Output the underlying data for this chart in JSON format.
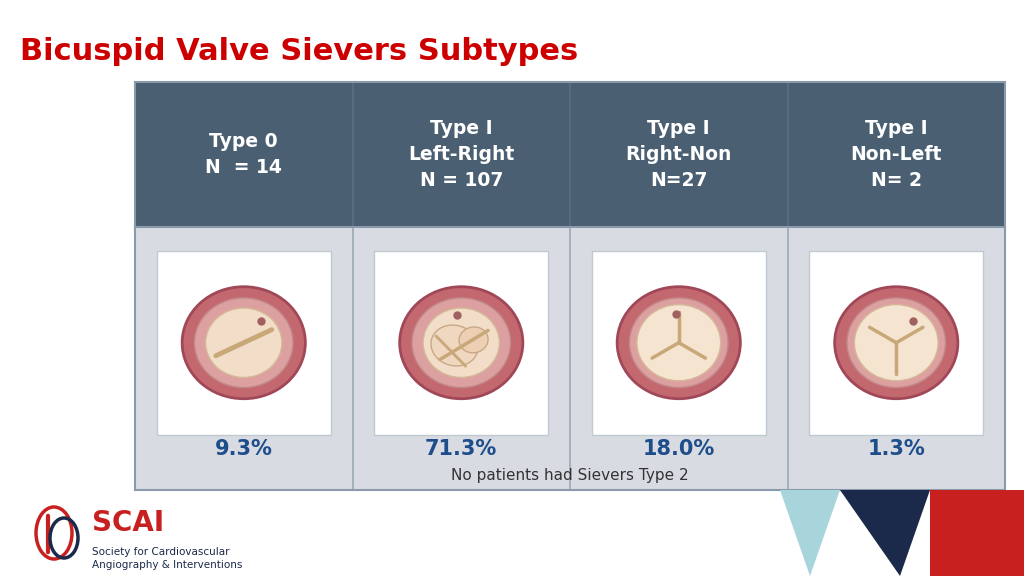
{
  "title": "Bicuspid Valve Sievers Subtypes",
  "title_color": "#CC0000",
  "title_fontsize": 22,
  "header_bg": "#4A5F72",
  "header_text_color": "#FFFFFF",
  "body_bg": "#D8DCE2",
  "percentage_color": "#1E4D8C",
  "footer_text_color": "#333333",
  "columns": [
    {
      "header": "Type 0\nN  = 14",
      "percentage": "9.3%"
    },
    {
      "header": "Type I\nLeft-Right\nN = 107",
      "percentage": "71.3%"
    },
    {
      "header": "Type I\nRight-Non\nN=27",
      "percentage": "18.0%"
    },
    {
      "header": "Type I\nNon-Left\nN= 2",
      "percentage": "1.3%"
    }
  ],
  "footer_note": "No patients had Sievers Type 2",
  "bg_color": "#FFFFFF",
  "scai_red": "#C8201F",
  "scai_navy": "#1B2A4A",
  "scai_lightblue": "#A8D4DC"
}
